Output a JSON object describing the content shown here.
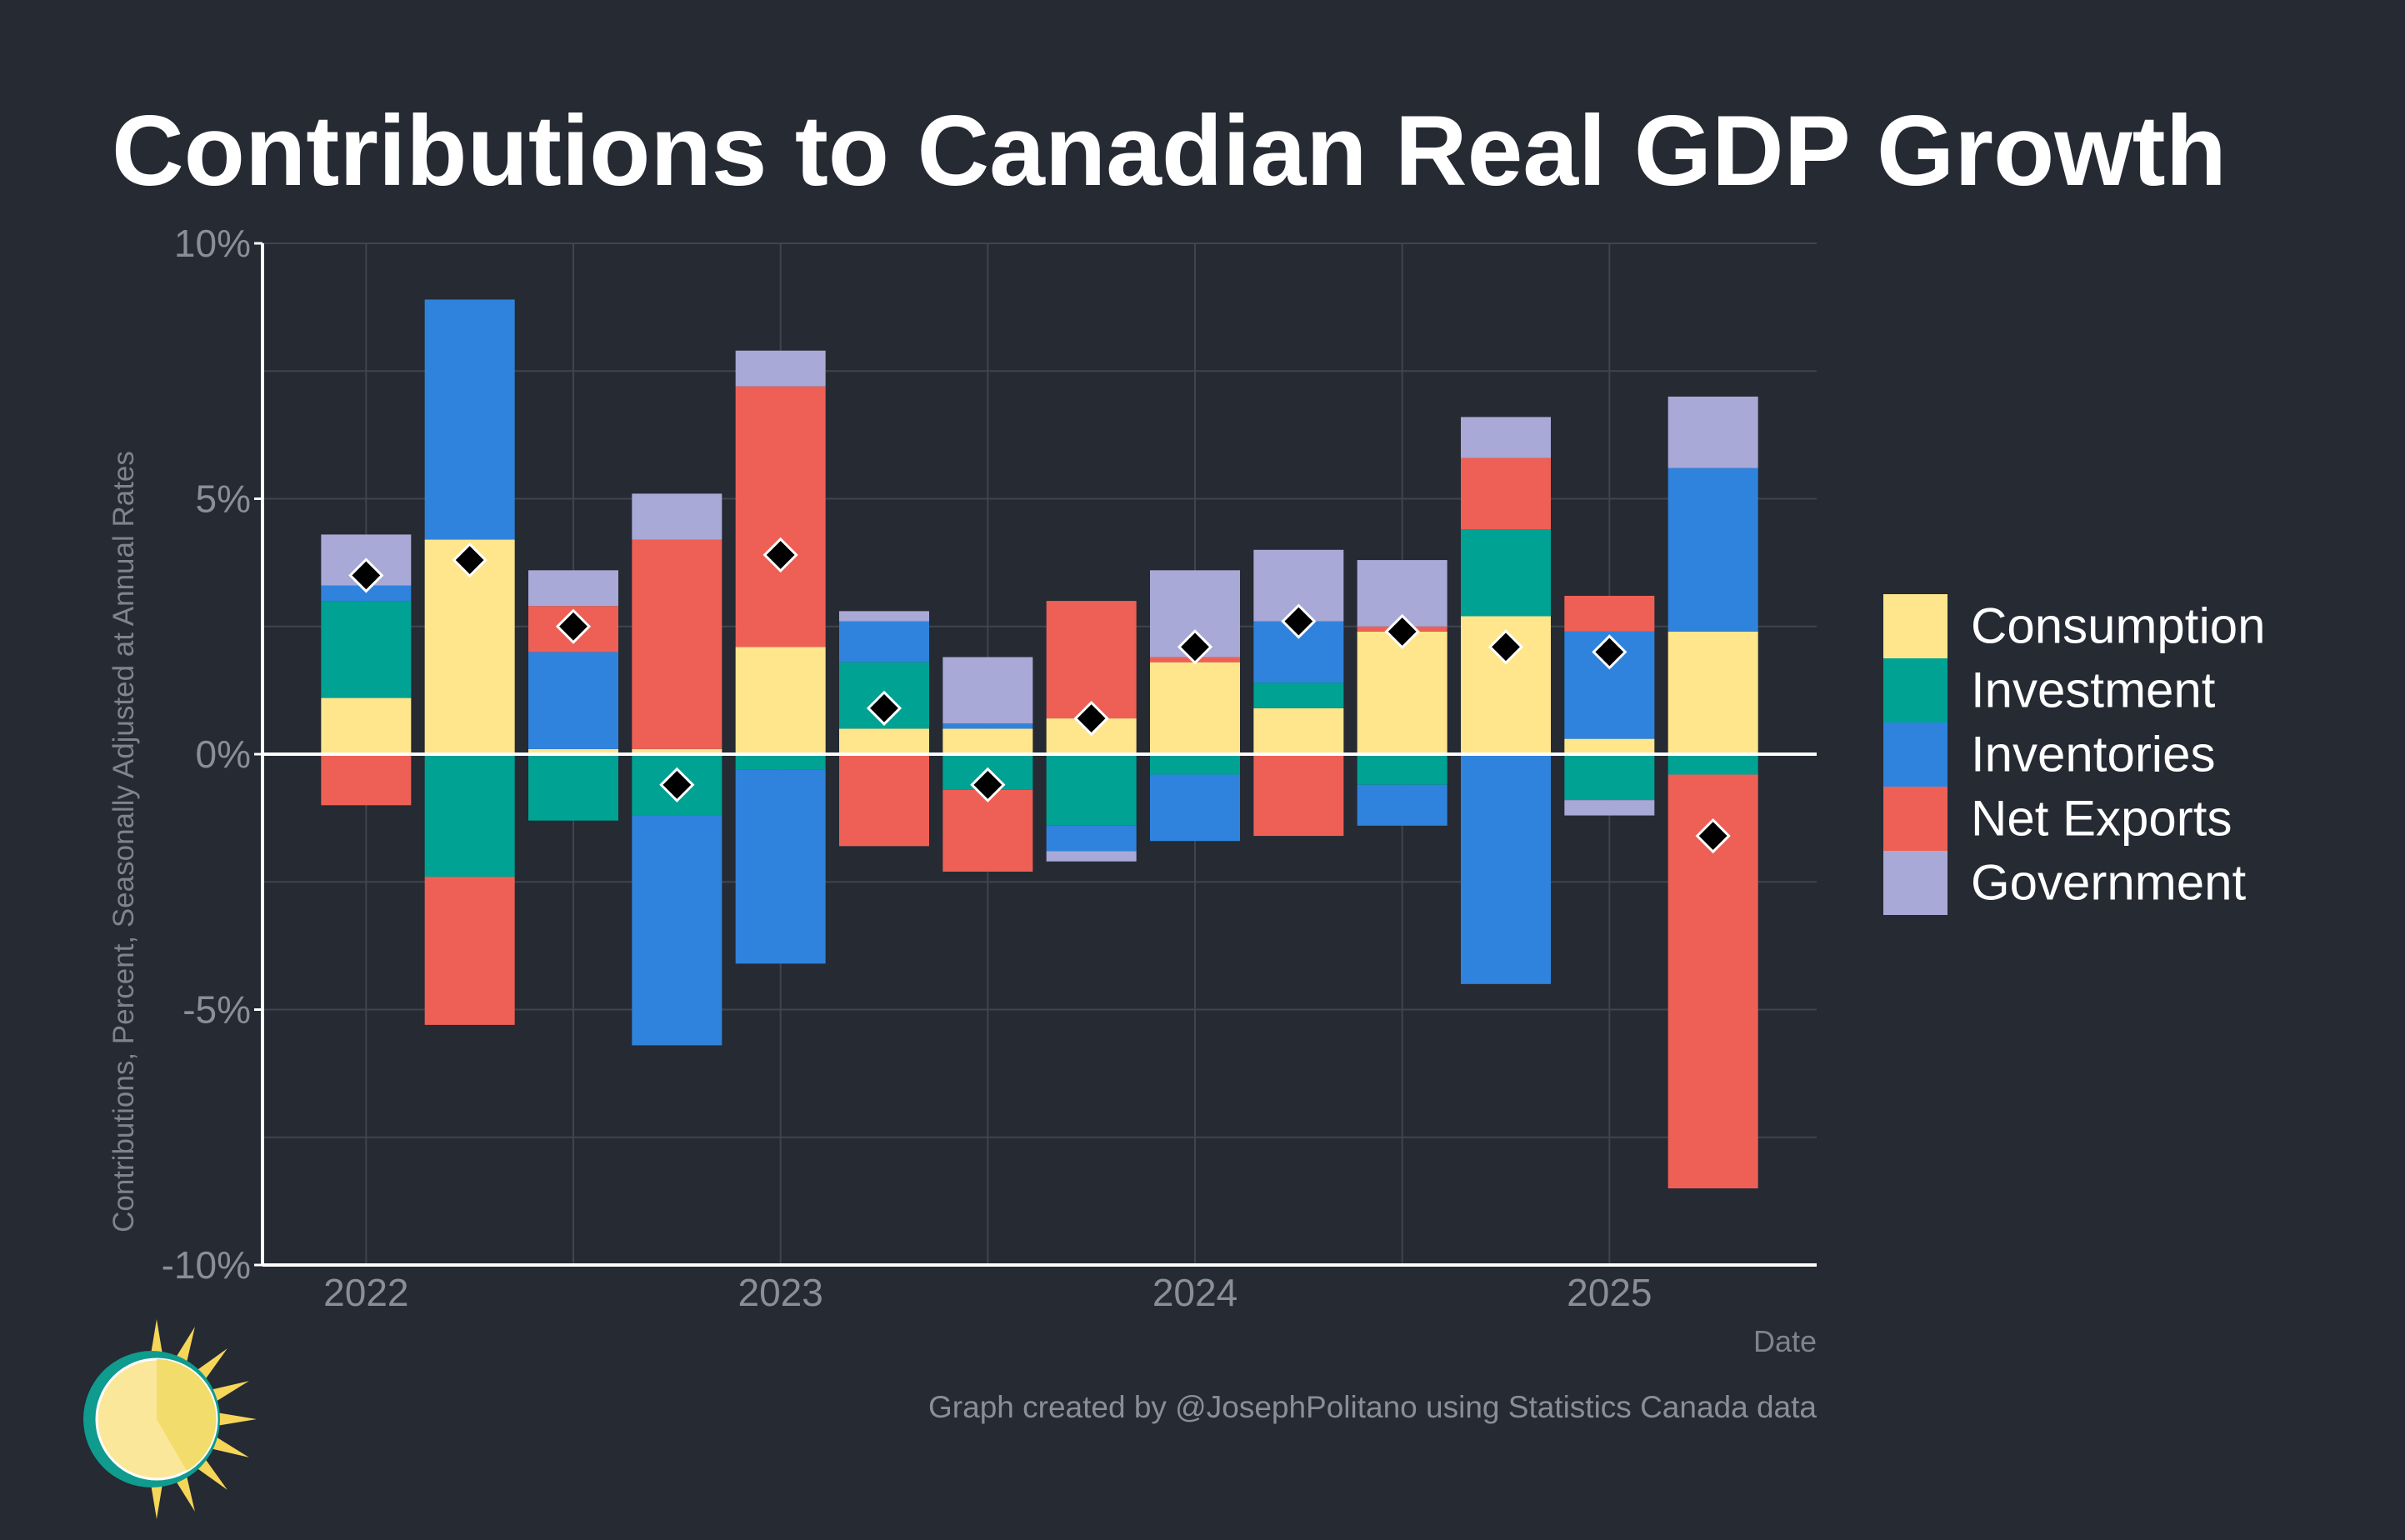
{
  "chart_data": {
    "type": "bar",
    "stacked": true,
    "title": "Contributions to Canadian Real GDP Growth",
    "xlabel": "Date",
    "ylabel": "Contributions, Percent, Seasonally Adjusted at Annual Rates",
    "caption": "Graph created by @JosephPolitano using Statistics Canada data",
    "ylim": [
      -10,
      10
    ],
    "y_ticks": [
      -10,
      -5,
      0,
      5,
      10
    ],
    "y_tick_labels": [
      "-10%",
      "-5%",
      "0%",
      "5%",
      "10%"
    ],
    "x_range": [
      2021.75,
      2025.5
    ],
    "x_ticks": [
      2022,
      2023,
      2024,
      2025
    ],
    "x_tick_labels": [
      "2022",
      "2023",
      "2024",
      "2025"
    ],
    "grid": true,
    "legend_position": "right",
    "x": [
      2022.0,
      2022.25,
      2022.5,
      2022.75,
      2023.0,
      2023.25,
      2023.5,
      2023.75,
      2024.0,
      2024.25,
      2024.5,
      2024.75,
      2025.0,
      2025.25
    ],
    "series": [
      {
        "name": "Consumption",
        "color": "#ffe68c",
        "values": [
          1.1,
          4.2,
          0.1,
          0.1,
          2.1,
          0.5,
          0.5,
          0.7,
          1.8,
          0.9,
          2.4,
          2.7,
          0.3,
          2.4
        ]
      },
      {
        "name": "Investment",
        "color": "#00a294",
        "values": [
          1.9,
          -2.4,
          -1.3,
          -1.2,
          -0.3,
          1.3,
          -0.7,
          -1.4,
          -0.4,
          0.5,
          -0.6,
          1.7,
          -0.9,
          -0.4
        ]
      },
      {
        "name": "Inventories",
        "color": "#3083dc",
        "values": [
          0.3,
          4.7,
          1.9,
          -4.5,
          -3.8,
          0.8,
          0.1,
          -0.5,
          -1.3,
          1.2,
          -0.8,
          -4.5,
          2.1,
          3.2
        ]
      },
      {
        "name": "Net Exports",
        "color": "#ee6055",
        "values": [
          -1.0,
          -2.9,
          0.9,
          4.1,
          5.1,
          -1.8,
          -1.6,
          2.3,
          0.1,
          -1.6,
          0.1,
          1.4,
          0.7,
          -8.1
        ]
      },
      {
        "name": "Government",
        "color": "#a8a9d6",
        "values": [
          1.0,
          0.0,
          0.7,
          0.9,
          0.7,
          0.2,
          1.3,
          -0.2,
          1.7,
          1.4,
          1.3,
          0.8,
          -0.3,
          1.4
        ]
      }
    ],
    "total": {
      "marker": "diamond",
      "values": [
        3.5,
        3.8,
        2.5,
        -0.6,
        3.9,
        0.9,
        -0.6,
        0.7,
        2.1,
        2.6,
        2.4,
        2.1,
        2.0,
        -1.6
      ]
    }
  }
}
